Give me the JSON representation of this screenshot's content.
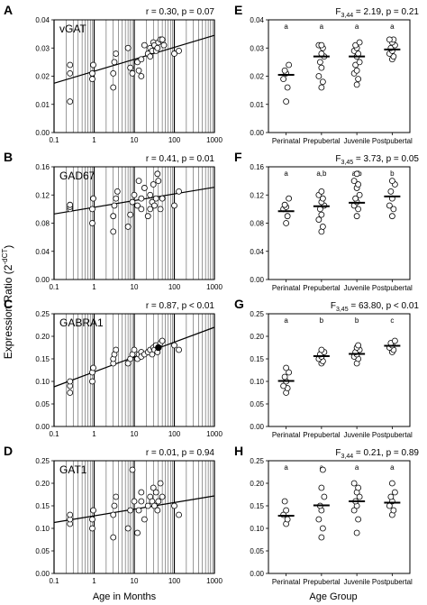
{
  "figure": {
    "left_ylabel": "Expression Ratio (2",
    "left_ylabel_sup": "-dCT",
    "left_ylabel_end": ")",
    "left_xlabel": "Age in Months",
    "right_xlabel": "Age Group"
  },
  "chart_data": [
    {
      "panel": "A",
      "type": "scatter",
      "title": "vGAT",
      "stat": "r = 0.30, p = 0.07",
      "xscale": "log",
      "xlim": [
        0.1,
        1000
      ],
      "xticks": [
        "0.1",
        "1",
        "10",
        "100",
        "1000"
      ],
      "ylim": [
        0,
        0.04
      ],
      "yticks": [
        "0.00",
        "0.01",
        "0.02",
        "0.03",
        "0.04"
      ],
      "grid": "vertical log minor lines",
      "x": [
        0.25,
        0.25,
        0.25,
        0.9,
        0.9,
        0.95,
        3,
        3,
        3.2,
        3.5,
        7,
        8,
        9,
        12,
        13,
        15,
        15,
        18,
        22,
        25,
        25,
        28,
        30,
        32,
        35,
        38,
        40,
        45,
        50,
        55,
        100,
        130
      ],
      "y": [
        0.011,
        0.021,
        0.024,
        0.019,
        0.021,
        0.024,
        0.016,
        0.021,
        0.025,
        0.028,
        0.03,
        0.023,
        0.021,
        0.025,
        0.022,
        0.026,
        0.02,
        0.031,
        0.028,
        0.03,
        0.027,
        0.029,
        0.032,
        0.031,
        0.029,
        0.03,
        0.032,
        0.033,
        0.033,
        0.031,
        0.028,
        0.029
      ],
      "fit": [
        [
          0.1,
          0.0175
        ],
        [
          1000,
          0.0345
        ]
      ],
      "highlight": []
    },
    {
      "panel": "B",
      "type": "scatter",
      "title": "GAD67",
      "stat": "r = 0.41, p = 0.01",
      "xscale": "log",
      "xlim": [
        0.1,
        1000
      ],
      "xticks": [
        "0.1",
        "1",
        "10",
        "100",
        "1000"
      ],
      "ylim": [
        0,
        0.16
      ],
      "yticks": [
        "0.00",
        "0.04",
        "0.08",
        "0.12",
        "0.16"
      ],
      "grid": "vertical log minor lines",
      "x": [
        0.25,
        0.25,
        0.25,
        0.9,
        0.9,
        0.95,
        3,
        3,
        3.2,
        3.5,
        3.8,
        7,
        8,
        9,
        10,
        12,
        13,
        15,
        15,
        18,
        22,
        25,
        25,
        28,
        30,
        32,
        35,
        38,
        40,
        45,
        50,
        100,
        130
      ],
      "y": [
        0.1,
        0.103,
        0.106,
        0.08,
        0.1,
        0.115,
        0.068,
        0.09,
        0.105,
        0.115,
        0.125,
        0.075,
        0.092,
        0.11,
        0.12,
        0.105,
        0.14,
        0.1,
        0.115,
        0.13,
        0.09,
        0.1,
        0.12,
        0.11,
        0.135,
        0.105,
        0.115,
        0.15,
        0.14,
        0.1,
        0.115,
        0.105,
        0.125
      ],
      "fit": [
        [
          0.1,
          0.093
        ],
        [
          1000,
          0.131
        ]
      ],
      "highlight": []
    },
    {
      "panel": "C",
      "type": "scatter",
      "title": "GABRA1",
      "stat": "r = 0.87, p < 0.01",
      "xscale": "log",
      "xlim": [
        0.1,
        1000
      ],
      "xticks": [
        "0.1",
        "1",
        "10",
        "100",
        "1000"
      ],
      "ylim": [
        0,
        0.25
      ],
      "yticks": [
        "0.00",
        "0.05",
        "0.10",
        "0.15",
        "0.20",
        "0.25"
      ],
      "grid": "vertical log minor lines",
      "x": [
        0.25,
        0.25,
        0.25,
        0.9,
        0.9,
        0.95,
        3,
        3,
        3.2,
        3.5,
        7,
        8,
        9,
        10,
        12,
        13,
        15,
        15,
        18,
        22,
        25,
        28,
        30,
        32,
        35,
        38,
        40,
        45,
        50,
        100,
        130
      ],
      "y": [
        0.075,
        0.09,
        0.1,
        0.1,
        0.12,
        0.13,
        0.14,
        0.15,
        0.16,
        0.17,
        0.14,
        0.15,
        0.16,
        0.17,
        0.15,
        0.16,
        0.165,
        0.155,
        0.16,
        0.165,
        0.17,
        0.16,
        0.175,
        0.17,
        0.18,
        0.165,
        0.175,
        0.185,
        0.19,
        0.18,
        0.17
      ],
      "fit": [
        [
          0.1,
          0.088
        ],
        [
          1000,
          0.22
        ]
      ],
      "highlight": [
        [
          40,
          0.175
        ]
      ]
    },
    {
      "panel": "D",
      "type": "scatter",
      "title": "GAT1",
      "stat": "r = 0.01, p = 0.94",
      "xscale": "log",
      "xlim": [
        0.1,
        1000
      ],
      "xticks": [
        "0.1",
        "1",
        "10",
        "100",
        "1000"
      ],
      "ylim": [
        0,
        0.25
      ],
      "yticks": [
        "0.00",
        "0.05",
        "0.10",
        "0.15",
        "0.20",
        "0.25"
      ],
      "grid": "vertical log minor lines",
      "x": [
        0.25,
        0.25,
        0.25,
        0.9,
        0.9,
        0.95,
        3,
        3,
        3.2,
        3.5,
        7,
        8,
        9,
        10,
        12,
        13,
        15,
        15,
        18,
        22,
        25,
        28,
        30,
        32,
        35,
        38,
        40,
        45,
        50,
        100,
        130
      ],
      "y": [
        0.11,
        0.12,
        0.13,
        0.1,
        0.12,
        0.14,
        0.08,
        0.13,
        0.15,
        0.17,
        0.1,
        0.14,
        0.23,
        0.16,
        0.09,
        0.14,
        0.16,
        0.18,
        0.12,
        0.15,
        0.17,
        0.16,
        0.19,
        0.15,
        0.18,
        0.14,
        0.16,
        0.2,
        0.17,
        0.15,
        0.13
      ],
      "fit": [
        [
          0.1,
          0.113
        ],
        [
          1000,
          0.172
        ]
      ],
      "highlight": []
    },
    {
      "panel": "E",
      "type": "scatter",
      "title": "",
      "stat_main": "F",
      "stat_sub": "3,44",
      "stat_rest": " = 2.19, p = 0.21",
      "categories": [
        "Perinatal",
        "Prepubertal",
        "Juvenile",
        "Postpubertal"
      ],
      "sig": [
        "a",
        "a",
        "a",
        "a"
      ],
      "ylim": [
        0,
        0.04
      ],
      "yticks": [
        "0.00",
        "0.01",
        "0.02",
        "0.03",
        "0.04"
      ],
      "points": [
        [
          0.011,
          0.016,
          0.019,
          0.021,
          0.022,
          0.024
        ],
        [
          0.016,
          0.018,
          0.02,
          0.023,
          0.025,
          0.027,
          0.028,
          0.03,
          0.031,
          0.031
        ],
        [
          0.017,
          0.019,
          0.021,
          0.022,
          0.024,
          0.025,
          0.027,
          0.028,
          0.029,
          0.03,
          0.031,
          0.032
        ],
        [
          0.026,
          0.027,
          0.028,
          0.029,
          0.03,
          0.031,
          0.032,
          0.033,
          0.033
        ]
      ],
      "means": [
        0.0205,
        0.027,
        0.027,
        0.0295
      ]
    },
    {
      "panel": "F",
      "type": "scatter",
      "title": "",
      "stat_main": "F",
      "stat_sub": "3,45",
      "stat_rest": " = 3.73, p = 0.05",
      "categories": [
        "Perinatal",
        "Prepubertal",
        "Juvenile",
        "Postpubertal"
      ],
      "sig": [
        "a",
        "a,b",
        "a,b",
        "b"
      ],
      "ylim": [
        0,
        0.16
      ],
      "yticks": [
        "0.00",
        "0.04",
        "0.08",
        "0.12",
        "0.16"
      ],
      "points": [
        [
          0.08,
          0.09,
          0.1,
          0.103,
          0.106,
          0.115
        ],
        [
          0.068,
          0.075,
          0.085,
          0.092,
          0.1,
          0.105,
          0.11,
          0.115,
          0.12,
          0.125
        ],
        [
          0.09,
          0.1,
          0.105,
          0.11,
          0.115,
          0.12,
          0.13,
          0.135,
          0.14,
          0.15
        ],
        [
          0.09,
          0.1,
          0.105,
          0.115,
          0.125,
          0.135,
          0.14
        ]
      ],
      "means": [
        0.097,
        0.104,
        0.109,
        0.118
      ]
    },
    {
      "panel": "G",
      "type": "scatter",
      "title": "",
      "stat_main": "F",
      "stat_sub": "3,45",
      "stat_rest": " = 63.80, p < 0.01",
      "categories": [
        "Perinatal",
        "Prepubertal",
        "Juvenile",
        "Postpubertal"
      ],
      "sig": [
        "a",
        "b",
        "b",
        "c"
      ],
      "ylim": [
        0,
        0.25
      ],
      "yticks": [
        "0.00",
        "0.05",
        "0.10",
        "0.15",
        "0.20",
        "0.25"
      ],
      "points": [
        [
          0.075,
          0.085,
          0.09,
          0.1,
          0.11,
          0.12,
          0.13
        ],
        [
          0.14,
          0.145,
          0.15,
          0.155,
          0.16,
          0.165,
          0.17
        ],
        [
          0.14,
          0.15,
          0.155,
          0.16,
          0.165,
          0.17,
          0.175,
          0.18
        ],
        [
          0.165,
          0.17,
          0.175,
          0.18,
          0.185,
          0.19
        ]
      ],
      "means": [
        0.101,
        0.156,
        0.161,
        0.179
      ]
    },
    {
      "panel": "H",
      "type": "scatter",
      "title": "",
      "stat_main": "F",
      "stat_sub": "3,44",
      "stat_rest": " = 0.21, p = 0.89",
      "categories": [
        "Perinatal",
        "Prepubertal",
        "Juvenile",
        "Postpubertal"
      ],
      "sig": [
        "a",
        "a",
        "a",
        "a"
      ],
      "ylim": [
        0,
        0.25
      ],
      "yticks": [
        "0.00",
        "0.05",
        "0.10",
        "0.15",
        "0.20",
        "0.25"
      ],
      "points": [
        [
          0.11,
          0.12,
          0.13,
          0.14,
          0.16
        ],
        [
          0.08,
          0.1,
          0.12,
          0.14,
          0.15,
          0.17,
          0.19,
          0.23
        ],
        [
          0.09,
          0.12,
          0.14,
          0.15,
          0.16,
          0.17,
          0.18,
          0.19,
          0.2
        ],
        [
          0.13,
          0.14,
          0.15,
          0.16,
          0.17,
          0.18,
          0.2
        ]
      ],
      "means": [
        0.128,
        0.151,
        0.16,
        0.157
      ]
    }
  ]
}
